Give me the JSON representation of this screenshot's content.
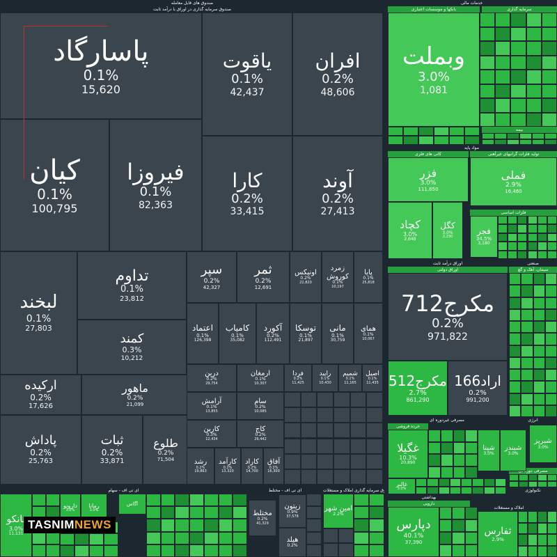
{
  "chart_data": {
    "type": "treemap",
    "colors": {
      "neutral": "#3b454d",
      "green_light": "#44c857",
      "green": "#2db743",
      "green_dark": "#1f8f34",
      "header_bg": "#1c2730"
    },
    "sectors": [
      {
        "name": "صندوق های قابل معامله",
        "subtitle": "صندوق سرمایه گذاری در اوراق با درآمد ثابت"
      },
      {
        "name": "خدمات مالی",
        "subtitle": "بانکها و موسسات اعتباری"
      },
      {
        "name": "سرمایه گذاری"
      },
      {
        "name": "بیمه"
      },
      {
        "name": "مواد پایه",
        "subtitle": "کانی های فلزی"
      },
      {
        "name": "تولید فلزات گرانبهای غیرآهنی"
      },
      {
        "name": "فلزات اساسی"
      },
      {
        "name": "اوراق درآمد ثابت",
        "subtitle": "اوراق دولتی"
      },
      {
        "name": "صنعتی",
        "subtitle": "سیمان، آهک و گچ"
      },
      {
        "name": "مصرفی غیردوره ای",
        "subtitle": "خرده فروشی"
      },
      {
        "name": "انرژی"
      },
      {
        "name": "مصرفی دوره ای"
      },
      {
        "name": "بهداشتی",
        "subtitle": "دارویی"
      },
      {
        "name": "املاک و مستغلات"
      },
      {
        "name": "تکنولوژی"
      },
      {
        "name": "ای تی اف - سهام"
      },
      {
        "name": "ای تی اف - مختلط"
      },
      {
        "name": "صندوق سرمایه گذاری املاک و مستغلات"
      },
      {
        "name": "ای تی اف"
      }
    ],
    "tiles": [
      {
        "symbol": "پاسارگاد",
        "change": "0.1%",
        "volume": "15,620",
        "color": "neutral"
      },
      {
        "symbol": "یاقوت",
        "change": "0.1%",
        "volume": "42,437",
        "color": "neutral"
      },
      {
        "symbol": "افران",
        "change": "0.2%",
        "volume": "48,606",
        "color": "neutral"
      },
      {
        "symbol": "کیان",
        "change": "0.1%",
        "volume": "100,795",
        "color": "neutral"
      },
      {
        "symbol": "فیروزا",
        "change": "0.1%",
        "volume": "82,363",
        "color": "neutral"
      },
      {
        "symbol": "کارا",
        "change": "0.2%",
        "volume": "33,415",
        "color": "neutral"
      },
      {
        "symbol": "آوند",
        "change": "0.2%",
        "volume": "27,413",
        "color": "neutral"
      },
      {
        "symbol": "لبخند",
        "change": "0.1%",
        "volume": "27,803",
        "color": "neutral"
      },
      {
        "symbol": "تداوم",
        "change": "0.1%",
        "volume": "23,812",
        "color": "neutral"
      },
      {
        "symbol": "کمند",
        "change": "0.3%",
        "volume": "10,212",
        "color": "neutral"
      },
      {
        "symbol": "سپر",
        "change": "0.2%",
        "volume": "42,327",
        "color": "neutral"
      },
      {
        "symbol": "ثمر",
        "change": "0.2%",
        "volume": "12,691",
        "color": "neutral"
      },
      {
        "symbol": "اونیکس",
        "change": "0.2%",
        "volume": "22,820",
        "color": "neutral"
      },
      {
        "symbol": "زمرد کوروش",
        "change": "0.1%",
        "volume": "10,197",
        "color": "neutral"
      },
      {
        "symbol": "پایا",
        "change": "0.1%",
        "volume": "25,818",
        "color": "neutral"
      },
      {
        "symbol": "اعتماد",
        "change": "0.1%",
        "volume": "126,398",
        "color": "neutral"
      },
      {
        "symbol": "کامیاب",
        "change": "0.1%",
        "volume": "35,082",
        "color": "neutral"
      },
      {
        "symbol": "آکورد",
        "change": "0.2%",
        "volume": "112,491",
        "color": "neutral"
      },
      {
        "symbol": "توسکا",
        "change": "0.1%",
        "volume": "21,897",
        "color": "neutral"
      },
      {
        "symbol": "مانی",
        "change": "0.1%",
        "volume": "30,759",
        "color": "neutral"
      },
      {
        "symbol": "همای",
        "change": "0.1%",
        "volume": "10,067",
        "color": "neutral"
      },
      {
        "symbol": "ارکیده",
        "change": "0.2%",
        "volume": "17,626",
        "color": "neutral"
      },
      {
        "symbol": "ماهور",
        "change": "0.2%",
        "volume": "21,099",
        "color": "neutral"
      },
      {
        "symbol": "ثبات",
        "change": "0.2%",
        "volume": "33,871",
        "color": "neutral"
      },
      {
        "symbol": "طلوع",
        "change": "0.2%",
        "volume": "71,504",
        "color": "neutral"
      },
      {
        "symbol": "پاداش",
        "change": "0.2%",
        "volume": "25,763",
        "color": "neutral"
      },
      {
        "symbol": "درین",
        "change": "0.2%",
        "volume": "29,754",
        "color": "neutral"
      },
      {
        "symbol": "ارمغان",
        "change": "0.1%",
        "volume": "10,307",
        "color": "neutral"
      },
      {
        "symbol": "فردا",
        "change": "0.2%",
        "volume": "11,425",
        "color": "neutral"
      },
      {
        "symbol": "رایبد",
        "change": "0.1%",
        "volume": "10,430",
        "color": "neutral"
      },
      {
        "symbol": "شمیم",
        "change": "0.1%",
        "volume": "11,165",
        "color": "neutral"
      },
      {
        "symbol": "اصیل",
        "change": "0.1%",
        "volume": "11,435",
        "color": "neutral"
      },
      {
        "symbol": "آرامش",
        "change": "0.1%",
        "volume": "13,855",
        "color": "neutral"
      },
      {
        "symbol": "سام",
        "change": "0.2%",
        "volume": "10,085",
        "color": "neutral"
      },
      {
        "symbol": "کارین",
        "change": "0.3%",
        "volume": "12,434",
        "color": "neutral"
      },
      {
        "symbol": "کاج",
        "change": "0.2%",
        "volume": "29,442",
        "color": "neutral"
      },
      {
        "symbol": "رشد",
        "change": "0.2%",
        "volume": "19,863",
        "color": "neutral"
      },
      {
        "symbol": "کارآمد",
        "change": "0.2%",
        "volume": "13,320",
        "color": "neutral"
      },
      {
        "symbol": "کاراد",
        "change": "0.2%",
        "volume": "14,700",
        "color": "neutral"
      },
      {
        "symbol": "آفاق",
        "change": "0.2%",
        "volume": "16,300",
        "color": "neutral"
      },
      {
        "symbol": "وبملت",
        "change": "3.0%",
        "volume": "1,081",
        "color": "green_light"
      },
      {
        "symbol": "فزر",
        "change": "3.0%",
        "volume": "111,650",
        "color": "green_light"
      },
      {
        "symbol": "فملی",
        "change": "2.9%",
        "volume": "16,460",
        "color": "green_light"
      },
      {
        "symbol": "کچاد",
        "change": "3.0%",
        "volume": "2,648",
        "color": "green_light"
      },
      {
        "symbol": "کگل",
        "change": "3.0%",
        "volume": "2,230",
        "color": "green_light"
      },
      {
        "symbol": "فجر",
        "change": "34.5%",
        "volume": "3,180",
        "color": "green_light"
      },
      {
        "symbol": "مکرج712",
        "change": "0.2%",
        "volume": "971,822",
        "color": "neutral"
      },
      {
        "symbol": "مکرج512",
        "change": "2.7%",
        "volume": "861,290",
        "color": "green"
      },
      {
        "symbol": "اراد166",
        "change": "0.2%",
        "volume": "991,200",
        "color": "neutral"
      },
      {
        "symbol": "غگیلا",
        "change": "10.3%",
        "volume": "20,890",
        "color": "green"
      },
      {
        "symbol": "شپنا",
        "change": "3.0%",
        "volume": "",
        "color": "green"
      },
      {
        "symbol": "شبندر",
        "change": "3.0%",
        "volume": "",
        "color": "green"
      },
      {
        "symbol": "شبریز",
        "change": "3.0%",
        "volume": "",
        "color": "green"
      },
      {
        "symbol": "غالبر",
        "change": "3.0%",
        "volume": "",
        "color": "green"
      },
      {
        "symbol": "دپارس",
        "change": "40.1%",
        "volume": "37,390",
        "color": "green"
      },
      {
        "symbol": "ثفارس",
        "change": "2.9%",
        "volume": "",
        "color": "green"
      },
      {
        "symbol": "زیتون",
        "change": "0.9%",
        "volume": "37,578",
        "color": "neutral"
      },
      {
        "symbol": "مختلط",
        "change": "0.2%",
        "volume": "41,329",
        "color": "neutral"
      },
      {
        "symbol": "هیلد",
        "change": "0.2%",
        "volume": "",
        "color": "neutral"
      },
      {
        "symbol": "امین شهر",
        "change": "2.2%",
        "volume": "",
        "color": "green"
      },
      {
        "symbol": "بانکو",
        "change": "3.0%",
        "volume": "11,131",
        "color": "green"
      },
      {
        "symbol": "دارونو",
        "change": "3.0%",
        "volume": "",
        "color": "green"
      },
      {
        "symbol": "رمانا",
        "change": "3.0%",
        "volume": "",
        "color": "green"
      },
      {
        "symbol": "آگاس",
        "change": "",
        "volume": "",
        "color": "green"
      }
    ]
  },
  "watermark": {
    "part_a": "TASNIM",
    "part_b": "NEWS"
  }
}
